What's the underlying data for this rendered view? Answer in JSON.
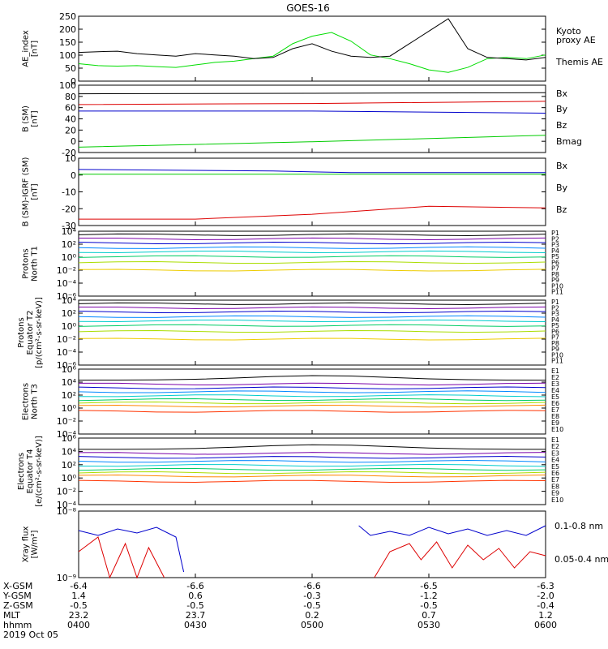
{
  "title": "GOES-16",
  "chart_data": [
    {
      "type": "line",
      "ylabel": "AE_index\n[nT]",
      "ylim": [
        0,
        260
      ],
      "yticks": [
        "0",
        "50",
        "100",
        "150",
        "200",
        "250"
      ],
      "x": [
        "0400",
        "0430",
        "0500",
        "0530",
        "0600"
      ],
      "series": [
        {
          "name": "Kyoto\nproxy AE",
          "color": "#00dd00",
          "x": [
            0,
            5,
            10,
            15,
            20,
            25,
            30,
            35,
            40,
            45,
            50,
            55,
            60,
            65,
            70,
            75,
            80,
            85,
            90,
            95,
            100,
            105,
            110,
            115,
            120
          ],
          "values": [
            70,
            62,
            60,
            62,
            58,
            55,
            65,
            75,
            80,
            90,
            100,
            150,
            180,
            195,
            160,
            105,
            90,
            70,
            45,
            35,
            55,
            90,
            95,
            90,
            105
          ]
        },
        {
          "name": "Themis AE",
          "color": "#000000",
          "x": [
            0,
            5,
            10,
            15,
            20,
            25,
            30,
            35,
            40,
            45,
            50,
            55,
            60,
            65,
            70,
            75,
            80,
            85,
            90,
            95,
            100,
            105,
            110,
            115,
            120
          ],
          "values": [
            115,
            118,
            120,
            110,
            105,
            100,
            110,
            105,
            100,
            90,
            95,
            130,
            150,
            120,
            100,
            95,
            100,
            150,
            200,
            250,
            130,
            95,
            90,
            85,
            95
          ]
        }
      ]
    },
    {
      "type": "line",
      "ylabel": "B (SM)\n[nT]",
      "ylim": [
        -25,
        100
      ],
      "yticks": [
        "-20",
        "0",
        "20",
        "40",
        "60",
        "80",
        "100"
      ],
      "series": [
        {
          "name": "Bx",
          "color": "#0000cc",
          "x": [
            0,
            60,
            120
          ],
          "values": [
            52,
            52,
            48
          ]
        },
        {
          "name": "By",
          "color": "#00cc00",
          "x": [
            0,
            60,
            120
          ],
          "values": [
            -15,
            -5,
            7
          ]
        },
        {
          "name": "Bz",
          "color": "#dd0000",
          "x": [
            0,
            60,
            120
          ],
          "values": [
            64,
            66,
            70
          ]
        },
        {
          "name": "Bmag",
          "color": "#000000",
          "x": [
            0,
            60,
            120
          ],
          "values": [
            84,
            85,
            86
          ]
        }
      ]
    },
    {
      "type": "line",
      "ylabel": "B (SM)-IGRF (SM)\n[nT]",
      "ylim": [
        -32,
        10
      ],
      "yticks": [
        "-30",
        "-20",
        "-10",
        "0",
        "10"
      ],
      "series": [
        {
          "name": "Bx",
          "color": "#0000cc",
          "x": [
            0,
            50,
            70,
            120
          ],
          "values": [
            3,
            2,
            1,
            1
          ]
        },
        {
          "name": "By",
          "color": "#00cc00",
          "x": [
            0,
            50,
            120
          ],
          "values": [
            0,
            0,
            0
          ]
        },
        {
          "name": "Bz",
          "color": "#dd0000",
          "x": [
            0,
            30,
            60,
            90,
            120
          ],
          "values": [
            -28,
            -28,
            -25,
            -20,
            -21
          ]
        }
      ]
    },
    {
      "type": "line",
      "ylabel": "Protons\nNorth T1",
      "yticks": [
        "10⁻⁶",
        "10⁻⁴",
        "10⁻²",
        "10⁰",
        "10²",
        "10⁴"
      ],
      "channels": [
        "P1",
        "P2",
        "P3",
        "P4",
        "P5",
        "P6",
        "P7",
        "P8",
        "P9",
        "P10",
        "P11"
      ]
    },
    {
      "type": "line",
      "ylabel": "Protons\nEquator T2\n[p/(cm²-s-sr-keV)]",
      "yticks": [
        "10⁻⁶",
        "10⁻⁴",
        "10⁻²",
        "10⁰",
        "10²",
        "10⁴"
      ],
      "channels": [
        "P1",
        "P2",
        "P3",
        "P4",
        "P5",
        "P6",
        "P7",
        "P8",
        "P9",
        "P10",
        "P11"
      ]
    },
    {
      "type": "line",
      "ylabel": "Electrons\nNorth T3",
      "yticks": [
        "10⁻⁴",
        "10⁻²",
        "10⁰",
        "10²",
        "10⁴",
        "10⁶"
      ],
      "channels": [
        "E1",
        "E2",
        "E3",
        "E4",
        "E5",
        "E6",
        "E7",
        "E8",
        "E9",
        "E10"
      ]
    },
    {
      "type": "line",
      "ylabel": "Electrons\nEquator T4\n[e/(cm²-s-sr-keV)]",
      "yticks": [
        "10⁻⁴",
        "10⁻²",
        "10⁰",
        "10²",
        "10⁴",
        "10⁶"
      ],
      "channels": [
        "E1",
        "E2",
        "E3",
        "E4",
        "E5",
        "E6",
        "E7",
        "E8",
        "E9",
        "E10"
      ]
    },
    {
      "type": "line",
      "ylabel": "Xray flux\n[W/m²]",
      "yticks": [
        "10⁻⁹",
        "10⁻⁸"
      ],
      "series": [
        {
          "name": "0.1-0.8 nm",
          "color": "#dd0000"
        },
        {
          "name": "0.05-0.4 nm",
          "color": "#0000cc"
        }
      ]
    }
  ],
  "ephemeris": {
    "labels": [
      "X-GSM",
      "Y-GSM",
      "Z-GSM",
      "MLT",
      "hhmm",
      "2019 Oct 05"
    ],
    "columns": [
      {
        "x_gsm": "-6.4",
        "y_gsm": "1.4",
        "z_gsm": "-0.5",
        "mlt": "23.2",
        "hhmm": "0400"
      },
      {
        "x_gsm": "-6.6",
        "y_gsm": "0.6",
        "z_gsm": "-0.5",
        "mlt": "23.7",
        "hhmm": "0430"
      },
      {
        "x_gsm": "-6.6",
        "y_gsm": "-0.3",
        "z_gsm": "-0.5",
        "mlt": "0.2",
        "hhmm": "0500"
      },
      {
        "x_gsm": "-6.5",
        "y_gsm": "-1.2",
        "z_gsm": "-0.5",
        "mlt": "0.7",
        "hhmm": "0530"
      },
      {
        "x_gsm": "-6.3",
        "y_gsm": "-2.0",
        "z_gsm": "-0.4",
        "mlt": "1.2",
        "hhmm": "0600"
      }
    ]
  }
}
